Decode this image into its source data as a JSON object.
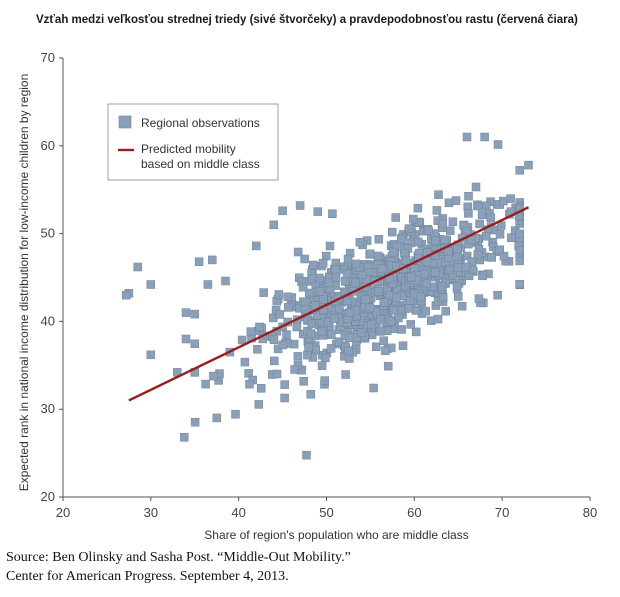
{
  "chart_data": {
    "type": "scatter",
    "title": "Vzťah medzi veľkosťou strednej triedy (sivé štvorčeky) a pravdepodobnosťou rastu (červená čiara)",
    "xlabel": "Share of region's population who are middle class",
    "ylabel": "Expected rank in national income distribution for low-income children by region",
    "xlim": [
      20,
      80
    ],
    "ylim": [
      20,
      70
    ],
    "xticks": [
      "20",
      "30",
      "40",
      "50",
      "60",
      "70",
      "80"
    ],
    "yticks": [
      "20",
      "30",
      "40",
      "50",
      "60",
      "70"
    ],
    "grid": false,
    "legend_position": "top-left",
    "legend": {
      "observations": "Regional observations",
      "line_1": "Predicted mobility",
      "line_2": "based on middle class"
    },
    "colors": {
      "points": "#8aa0b8",
      "points_edge": "#6e849c",
      "line": "#9b1c1c"
    },
    "trend_line": {
      "x": [
        27.5,
        73
      ],
      "y": [
        31,
        53
      ]
    },
    "outliers": {
      "x": [
        27.5,
        28.5,
        30,
        30,
        33,
        33.8,
        34,
        35.5,
        36.5,
        38.5,
        42,
        45,
        47,
        49,
        27.2,
        34,
        39,
        37,
        44,
        66,
        68,
        73,
        71
      ],
      "y": [
        43.2,
        46.2,
        44.2,
        36.2,
        34.2,
        26.8,
        41,
        46.8,
        44.2,
        44.6,
        48.6,
        52.6,
        53.2,
        52.5,
        43,
        38,
        36.5,
        47,
        51,
        61,
        61,
        57.8,
        52.5
      ]
    },
    "cloud": {
      "n": 760,
      "x_center": 57,
      "x_spread": 7.5,
      "slope": 0.45,
      "y_intercept_at_center": 44,
      "noise": 3.2,
      "x_min": 35,
      "x_max": 72,
      "seed": 7
    }
  },
  "source": {
    "line_1": "Source: Ben Olinsky and Sasha Post. “Middle-Out Mobility.”",
    "line_2": "Center for American Progress. September 4, 2013."
  }
}
